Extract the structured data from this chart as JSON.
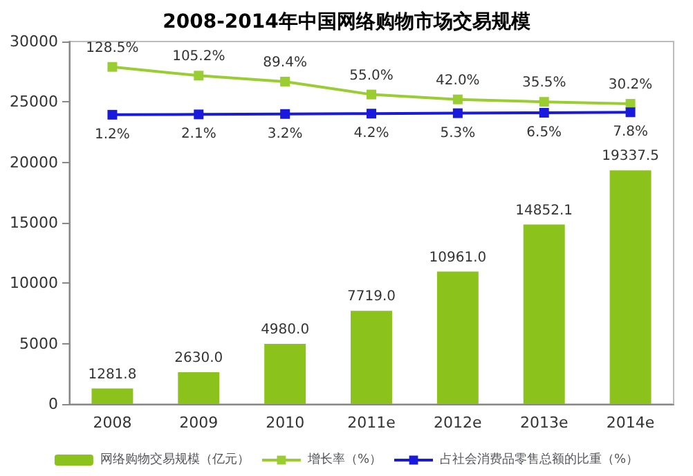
{
  "chart_data": {
    "type": "bar",
    "title": "2008-2014年中国网络购物市场交易规模",
    "categories": [
      "2008",
      "2009",
      "2010",
      "2011e",
      "2012e",
      "2013e",
      "2014e"
    ],
    "series": [
      {
        "name": "网络购物交易规模（亿元）",
        "color": "#8cc21c",
        "values": [
          1281.8,
          2630.0,
          4980.0,
          7719.0,
          10961.0,
          14852.1,
          19337.5
        ],
        "value_labels": [
          "1281.8",
          "2630.0",
          "4980.0",
          "7719.0",
          "10961.0",
          "14852.1",
          "19337.5"
        ]
      },
      {
        "name": "增长率（%）",
        "type": "line",
        "axis": "y2",
        "color": "#9acd32",
        "marker": "square",
        "values": [
          128.5,
          105.2,
          89.4,
          55.0,
          42.0,
          35.5,
          30.2
        ],
        "value_labels": [
          "128.5%",
          "105.2%",
          "89.4%",
          "55.0%",
          "42.0%",
          "35.5%",
          "30.2%"
        ]
      },
      {
        "name": "占社会消费品零售总额的比重（%）",
        "type": "line",
        "axis": "y2",
        "color": "#1a1adc",
        "marker": "square",
        "values": [
          1.2,
          2.1,
          3.2,
          4.2,
          5.3,
          6.5,
          7.8
        ],
        "value_labels": [
          "1.2%",
          "2.1%",
          "3.2%",
          "4.2%",
          "5.3%",
          "6.5%",
          "7.8%"
        ]
      }
    ],
    "ylim": [
      0,
      30000
    ],
    "yticks": [
      0,
      5000,
      10000,
      15000,
      20000,
      25000,
      30000
    ],
    "grid": false,
    "legend": "bottom"
  }
}
